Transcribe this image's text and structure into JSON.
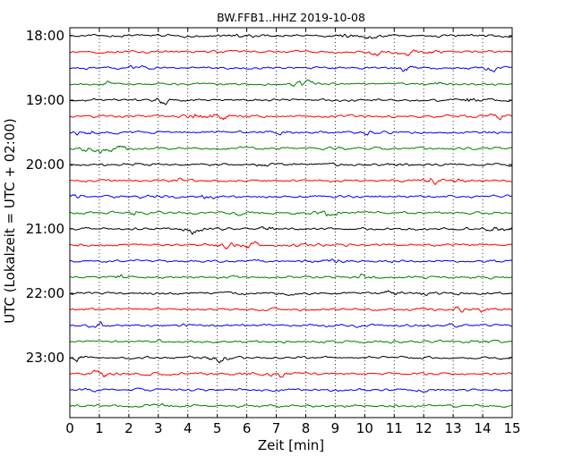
{
  "chart_data": {
    "type": "line",
    "title": "BW.FFB1..HHZ 2019-10-08",
    "xlabel": "Zeit  [min]",
    "ylabel": "UTC (Lokalzeit = UTC + 02:00)",
    "xlim": [
      0,
      15
    ],
    "x_ticks": [
      "0",
      "1",
      "2",
      "3",
      "4",
      "5",
      "6",
      "7",
      "8",
      "9",
      "10",
      "11",
      "12",
      "13",
      "14",
      "15"
    ],
    "y_tick_labels": [
      "18:00",
      "19:00",
      "20:00",
      "21:00",
      "22:00",
      "23:00"
    ],
    "grid": "vertical dotted lines at each minute",
    "trace_colors": [
      "#000000",
      "#ff0000",
      "#0000ff",
      "#008000"
    ],
    "traces_count": 24,
    "trace_start_times": [
      "18:00",
      "18:15",
      "18:30",
      "18:45",
      "19:00",
      "19:15",
      "19:30",
      "19:45",
      "20:00",
      "20:15",
      "20:30",
      "20:45",
      "21:00",
      "21:15",
      "21:30",
      "21:45",
      "22:00",
      "22:15",
      "22:30",
      "22:45",
      "23:00",
      "23:15",
      "23:30",
      "23:45"
    ]
  }
}
